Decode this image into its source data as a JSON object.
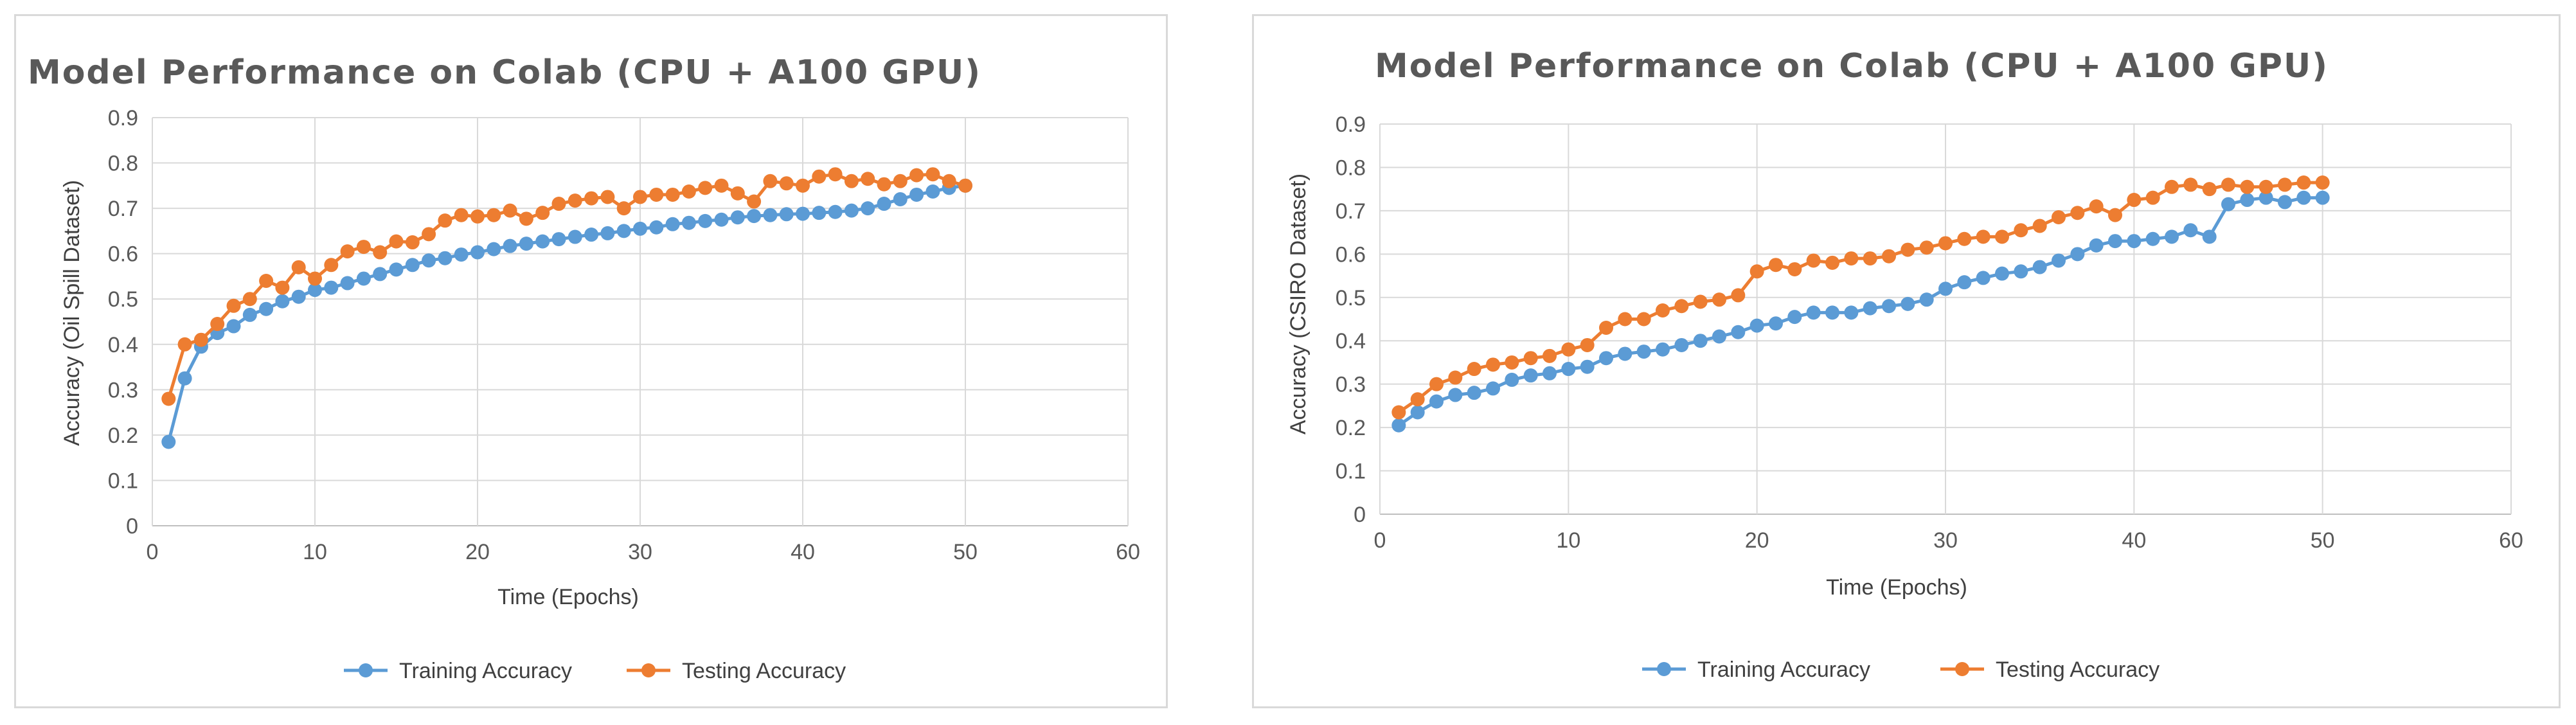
{
  "chart_data": [
    {
      "type": "line",
      "title": "Model Performance  on Colab (CPU + A100 GPU)",
      "xlabel": "Time (Epochs)",
      "ylabel": "Accuracy (Oil Spill Dataset)",
      "xlim": [
        0,
        60
      ],
      "ylim": [
        0,
        0.9
      ],
      "xticks": [
        0,
        10,
        20,
        30,
        40,
        50,
        60
      ],
      "yticks": [
        0,
        0.1,
        0.2,
        0.3,
        0.4,
        0.5,
        0.6,
        0.7,
        0.8,
        0.9
      ],
      "xtick_labels": [
        "0",
        "10",
        "20",
        "30",
        "40",
        "50",
        "60"
      ],
      "ytick_labels": [
        "0",
        "0.1",
        "0.2",
        "0.3",
        "0.4",
        "0.5",
        "0.6",
        "0.7",
        "0.8",
        "0.9"
      ],
      "grid": true,
      "legend": "bottom",
      "series": [
        {
          "name": "Training Accuracy",
          "color": "#5b9bd5",
          "x": [
            1,
            2,
            3,
            4,
            5,
            6,
            7,
            8,
            9,
            10,
            11,
            12,
            13,
            14,
            15,
            16,
            17,
            18,
            19,
            20,
            21,
            22,
            23,
            24,
            25,
            26,
            27,
            28,
            29,
            30,
            31,
            32,
            33,
            34,
            35,
            36,
            37,
            38,
            39,
            40,
            41,
            42,
            43,
            44,
            45,
            46,
            47,
            48,
            49,
            50
          ],
          "values": [
            0.185,
            0.325,
            0.395,
            0.425,
            0.44,
            0.465,
            0.478,
            0.495,
            0.505,
            0.52,
            0.525,
            0.535,
            0.545,
            0.555,
            0.565,
            0.575,
            0.585,
            0.59,
            0.598,
            0.603,
            0.61,
            0.617,
            0.622,
            0.627,
            0.632,
            0.637,
            0.642,
            0.645,
            0.65,
            0.655,
            0.658,
            0.665,
            0.668,
            0.672,
            0.675,
            0.68,
            0.683,
            0.685,
            0.687,
            0.688,
            0.69,
            0.692,
            0.695,
            0.7,
            0.71,
            0.72,
            0.73,
            0.737,
            0.745,
            0.75
          ]
        },
        {
          "name": "Testing Accuracy",
          "color": "#ed7d31",
          "x": [
            1,
            2,
            3,
            4,
            5,
            6,
            7,
            8,
            9,
            10,
            11,
            12,
            13,
            14,
            15,
            16,
            17,
            18,
            19,
            20,
            21,
            22,
            23,
            24,
            25,
            26,
            27,
            28,
            29,
            30,
            31,
            32,
            33,
            34,
            35,
            36,
            37,
            38,
            39,
            40,
            41,
            42,
            43,
            44,
            45,
            46,
            47,
            48,
            49,
            50
          ],
          "values": [
            0.28,
            0.4,
            0.41,
            0.445,
            0.485,
            0.5,
            0.54,
            0.525,
            0.57,
            0.545,
            0.575,
            0.605,
            0.615,
            0.603,
            0.627,
            0.625,
            0.643,
            0.673,
            0.685,
            0.682,
            0.685,
            0.695,
            0.677,
            0.69,
            0.71,
            0.717,
            0.722,
            0.725,
            0.7,
            0.725,
            0.73,
            0.73,
            0.737,
            0.745,
            0.75,
            0.733,
            0.715,
            0.76,
            0.755,
            0.75,
            0.77,
            0.775,
            0.76,
            0.765,
            0.753,
            0.76,
            0.773,
            0.775,
            0.76,
            0.75
          ]
        }
      ]
    },
    {
      "type": "line",
      "title": "Model Performance  on Colab (CPU + A100 GPU)",
      "xlabel": "Time (Epochs)",
      "ylabel": "Accuracy (CSIRO Dataset)",
      "xlim": [
        0,
        60
      ],
      "ylim": [
        0,
        0.9
      ],
      "xticks": [
        0,
        10,
        20,
        30,
        40,
        50,
        60
      ],
      "yticks": [
        0,
        0.1,
        0.2,
        0.3,
        0.4,
        0.5,
        0.6,
        0.7,
        0.8,
        0.9
      ],
      "xtick_labels": [
        "0",
        "10",
        "20",
        "30",
        "40",
        "50",
        "60"
      ],
      "ytick_labels": [
        "0",
        "0.1",
        "0.2",
        "0.3",
        "0.4",
        "0.5",
        "0.6",
        "0.7",
        "0.8",
        "0.9"
      ],
      "grid": true,
      "legend": "bottom",
      "series": [
        {
          "name": "Training Accuracy",
          "color": "#5b9bd5",
          "x": [
            1,
            2,
            3,
            4,
            5,
            6,
            7,
            8,
            9,
            10,
            11,
            12,
            13,
            14,
            15,
            16,
            17,
            18,
            19,
            20,
            21,
            22,
            23,
            24,
            25,
            26,
            27,
            28,
            29,
            30,
            31,
            32,
            33,
            34,
            35,
            36,
            37,
            38,
            39,
            40,
            41,
            42,
            43,
            44,
            45,
            46,
            47,
            48,
            49,
            50
          ],
          "values": [
            0.205,
            0.235,
            0.26,
            0.275,
            0.28,
            0.29,
            0.31,
            0.32,
            0.325,
            0.335,
            0.34,
            0.36,
            0.37,
            0.375,
            0.38,
            0.39,
            0.4,
            0.41,
            0.42,
            0.435,
            0.44,
            0.455,
            0.465,
            0.465,
            0.465,
            0.475,
            0.48,
            0.485,
            0.495,
            0.52,
            0.535,
            0.545,
            0.555,
            0.56,
            0.57,
            0.585,
            0.6,
            0.62,
            0.63,
            0.63,
            0.635,
            0.64,
            0.655,
            0.64,
            0.715,
            0.725,
            0.73,
            0.72,
            0.73,
            0.73
          ]
        },
        {
          "name": "Testing Accuracy",
          "color": "#ed7d31",
          "x": [
            1,
            2,
            3,
            4,
            5,
            6,
            7,
            8,
            9,
            10,
            11,
            12,
            13,
            14,
            15,
            16,
            17,
            18,
            19,
            20,
            21,
            22,
            23,
            24,
            25,
            26,
            27,
            28,
            29,
            30,
            31,
            32,
            33,
            34,
            35,
            36,
            37,
            38,
            39,
            40,
            41,
            42,
            43,
            44,
            45,
            46,
            47,
            48,
            49,
            50
          ],
          "values": [
            0.235,
            0.265,
            0.3,
            0.315,
            0.335,
            0.345,
            0.35,
            0.36,
            0.365,
            0.38,
            0.39,
            0.43,
            0.45,
            0.45,
            0.47,
            0.48,
            0.49,
            0.495,
            0.505,
            0.56,
            0.575,
            0.565,
            0.585,
            0.58,
            0.59,
            0.59,
            0.595,
            0.61,
            0.615,
            0.625,
            0.635,
            0.64,
            0.64,
            0.655,
            0.665,
            0.685,
            0.695,
            0.71,
            0.69,
            0.725,
            0.73,
            0.755,
            0.76,
            0.75,
            0.76,
            0.755,
            0.755,
            0.76,
            0.765,
            0.765
          ]
        }
      ]
    }
  ]
}
